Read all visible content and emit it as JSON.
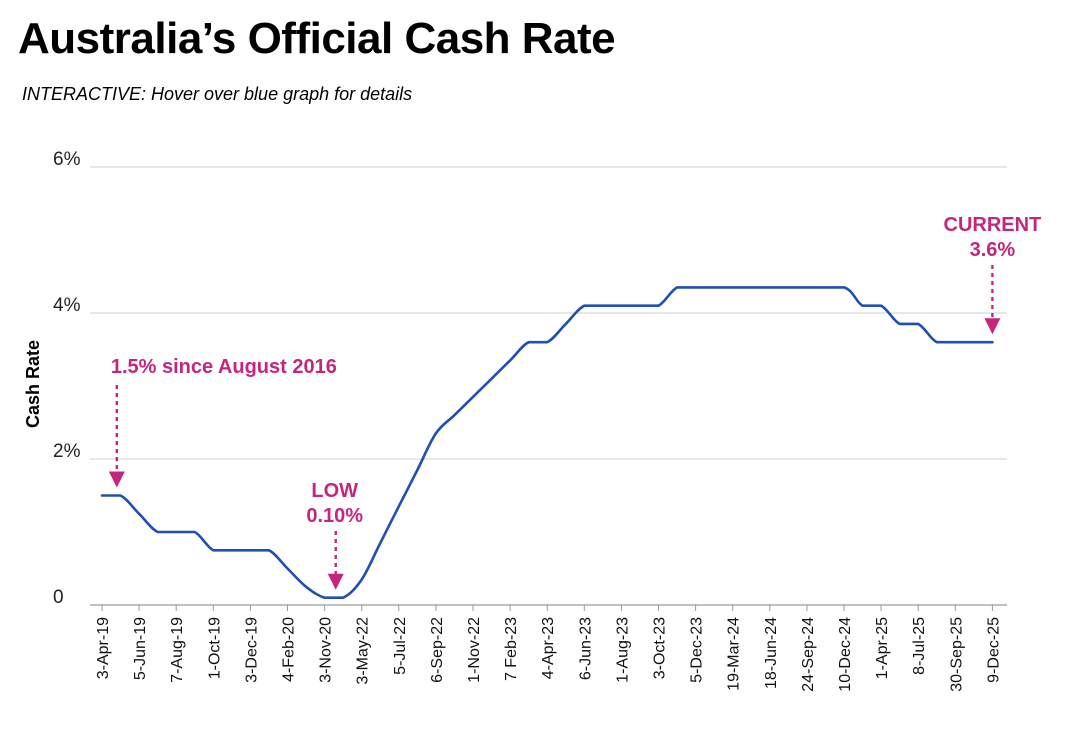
{
  "title": "Australia’s Official Cash Rate",
  "subtitle": "INTERACTIVE: Hover over blue graph for details",
  "colors": {
    "line": "#1f4fb5",
    "annotation": "#c4267e",
    "grid": "#cfcfcf",
    "axis": "#9a9a9a"
  },
  "chart_data": {
    "type": "line",
    "ylabel": "Cash Rate",
    "ylim": [
      0,
      6
    ],
    "yticks": [
      {
        "value": 0,
        "label": "0"
      },
      {
        "value": 2,
        "label": "2%"
      },
      {
        "value": 4,
        "label": "4%"
      },
      {
        "value": 6,
        "label": "6%"
      }
    ],
    "categories": [
      "3-Apr-19",
      "5-Jun-19",
      "7-Aug-19",
      "1-Oct-19",
      "3-Dec-19",
      "4-Feb-20",
      "3-Nov-20",
      "3-May-22",
      "5-Jul-22",
      "6-Sep-22",
      "1-Nov-22",
      "7 Feb-23",
      "4-Apr-23",
      "6-Jun-23",
      "1-Aug-23",
      "3-Oct-23",
      "5-Dec-23",
      "19-Mar-24",
      "18-Jun-24",
      "24-Sep-24",
      "10-Dec-24",
      "1-Apr-25",
      "8-Jul-25",
      "30-Sep-25",
      "9-Dec-25"
    ],
    "series": [
      {
        "points": [
          [
            0,
            1.5
          ],
          [
            0.5,
            1.5
          ],
          [
            1.0,
            1.25
          ],
          [
            1.5,
            1.0
          ],
          [
            2.0,
            1.0
          ],
          [
            2.5,
            1.0
          ],
          [
            3.0,
            0.75
          ],
          [
            3.5,
            0.75
          ],
          [
            4.0,
            0.75
          ],
          [
            4.5,
            0.75
          ],
          [
            5.0,
            0.5
          ],
          [
            5.5,
            0.25
          ],
          [
            6.0,
            0.1
          ],
          [
            6.5,
            0.1
          ],
          [
            7.0,
            0.35
          ],
          [
            7.5,
            0.85
          ],
          [
            8.0,
            1.35
          ],
          [
            8.5,
            1.85
          ],
          [
            9.0,
            2.35
          ],
          [
            9.5,
            2.6
          ],
          [
            10.0,
            2.85
          ],
          [
            10.5,
            3.1
          ],
          [
            11.0,
            3.35
          ],
          [
            11.5,
            3.6
          ],
          [
            12.0,
            3.6
          ],
          [
            12.5,
            3.85
          ],
          [
            13.0,
            4.1
          ],
          [
            13.5,
            4.1
          ],
          [
            14.0,
            4.1
          ],
          [
            14.5,
            4.1
          ],
          [
            15.0,
            4.1
          ],
          [
            15.5,
            4.35
          ],
          [
            16.0,
            4.35
          ],
          [
            17.0,
            4.35
          ],
          [
            18.0,
            4.35
          ],
          [
            19.0,
            4.35
          ],
          [
            20.0,
            4.35
          ],
          [
            20.5,
            4.1
          ],
          [
            21.0,
            4.1
          ],
          [
            21.5,
            3.85
          ],
          [
            22.0,
            3.85
          ],
          [
            22.5,
            3.6
          ],
          [
            23.0,
            3.6
          ],
          [
            23.5,
            3.6
          ],
          [
            24.0,
            3.6
          ]
        ]
      }
    ],
    "annotations": [
      {
        "lines": [
          "1.5% since August 2016"
        ],
        "at": 0.4,
        "value": 1.5
      },
      {
        "lines": [
          "LOW",
          "0.10%"
        ],
        "at": 6.3,
        "value": 0.1
      },
      {
        "lines": [
          "CURRENT",
          "3.6%"
        ],
        "at": 24.0,
        "value": 3.6
      }
    ]
  }
}
